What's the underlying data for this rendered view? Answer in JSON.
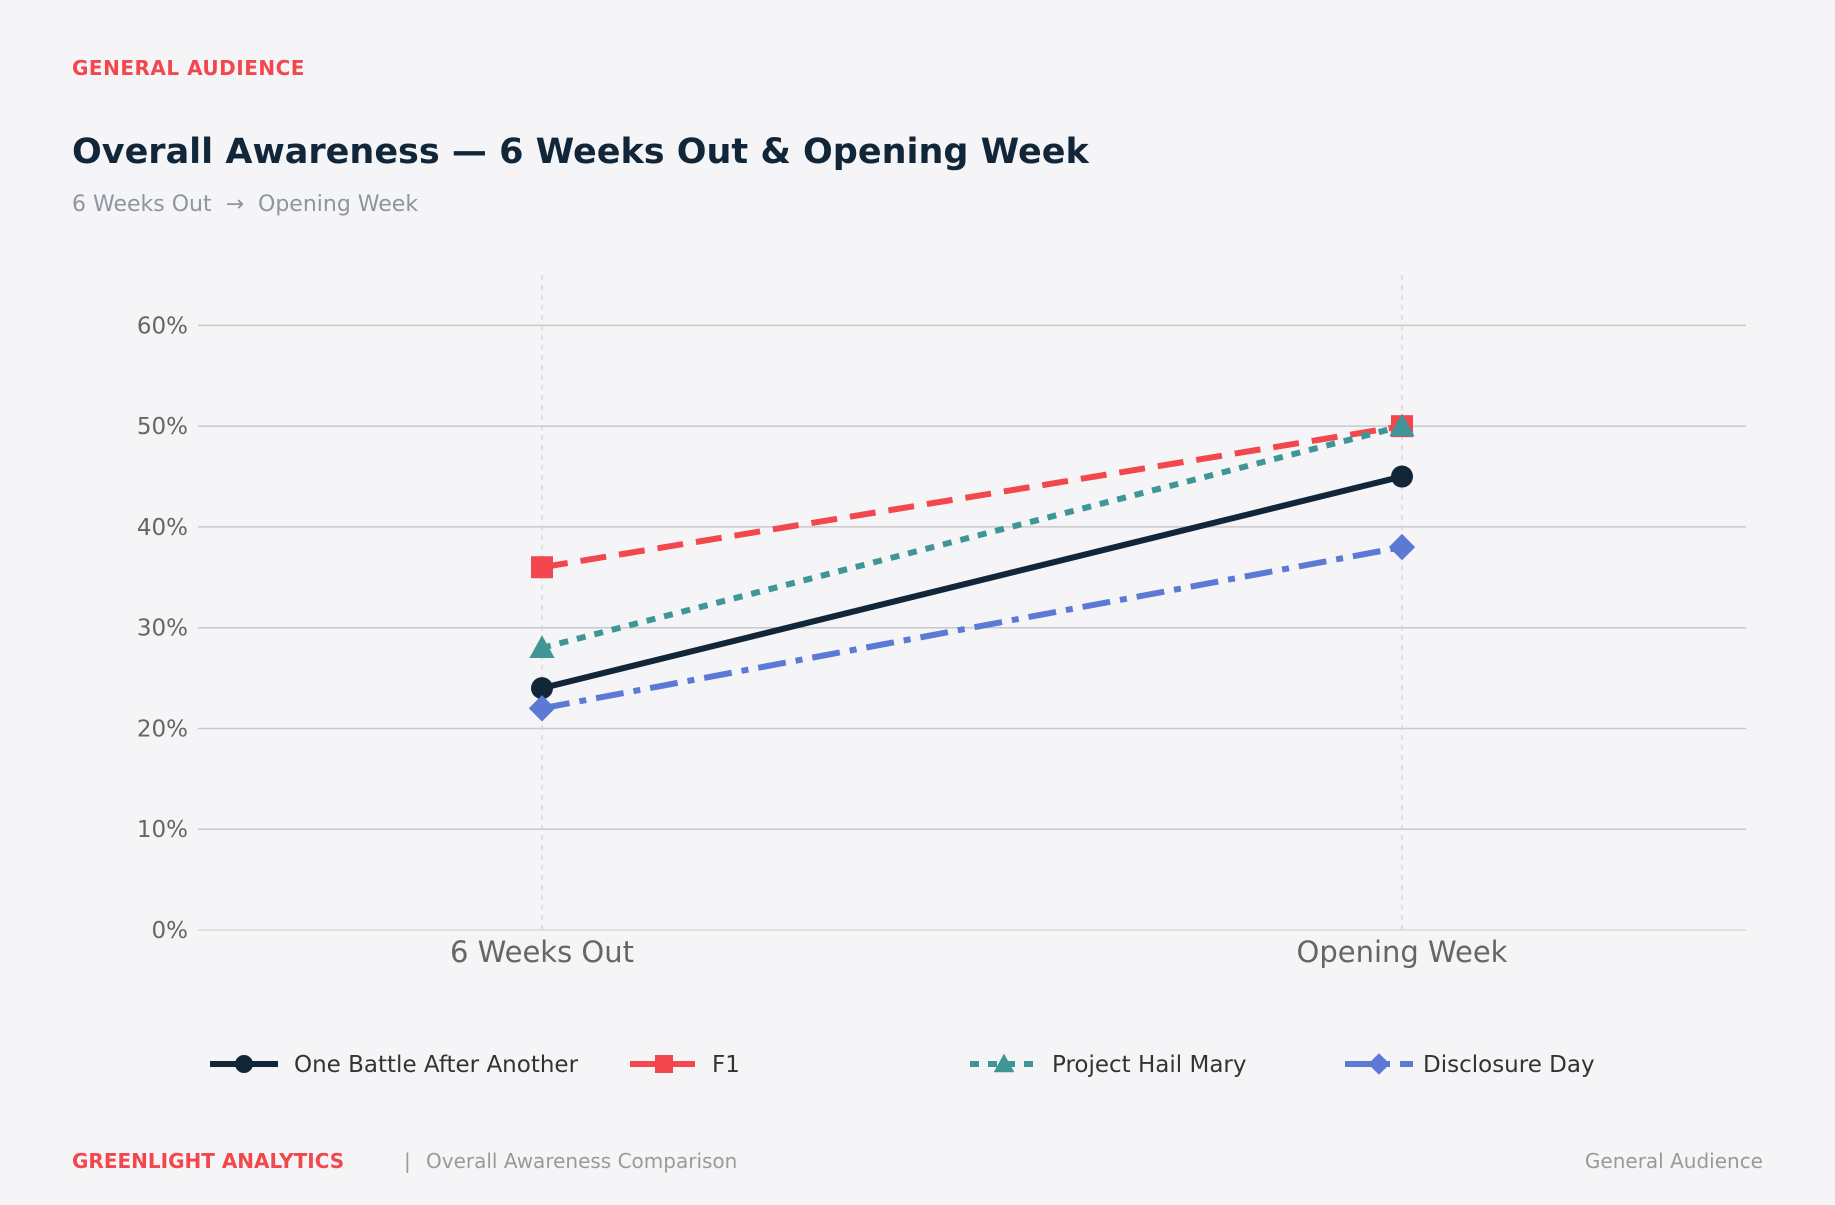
{
  "header": {
    "eyebrow": "GENERAL AUDIENCE",
    "title": "Overall Awareness — 6 Weeks Out & Opening Week",
    "subtitle": "6 Weeks Out  →  Opening Week"
  },
  "footer": {
    "brand": "GREENLIGHT ANALYTICS",
    "separator": "|",
    "description": "Overall Awareness Comparison",
    "right_label": "General Audience"
  },
  "colors": {
    "accent": "#f2474d",
    "navy": "#12263a",
    "teal": "#3f9696",
    "blue": "#5c79d6"
  },
  "chart_data": {
    "type": "line",
    "title": "Overall Awareness — 6 Weeks Out & Opening Week",
    "xlabel": "",
    "ylabel": "",
    "categories": [
      "6 Weeks Out",
      "Opening Week"
    ],
    "ylim": [
      0,
      65
    ],
    "yticks": [
      0,
      10,
      20,
      30,
      40,
      50,
      60
    ],
    "ytick_labels": [
      "0%",
      "10%",
      "20%",
      "30%",
      "40%",
      "50%",
      "60%"
    ],
    "grid": true,
    "legend_position": "bottom",
    "series": [
      {
        "name": "One Battle After Another",
        "values": [
          24,
          45
        ],
        "color": "#12263a",
        "marker": "circle",
        "line_style": "solid"
      },
      {
        "name": "F1",
        "values": [
          36,
          50
        ],
        "color": "#f2474d",
        "marker": "square",
        "line_style": "dashed"
      },
      {
        "name": "Project Hail Mary",
        "values": [
          28,
          50
        ],
        "color": "#3f9696",
        "marker": "triangle",
        "line_style": "dotted"
      },
      {
        "name": "Disclosure Day",
        "values": [
          22,
          38
        ],
        "color": "#5c79d6",
        "marker": "diamond",
        "line_style": "dashdot"
      }
    ]
  }
}
